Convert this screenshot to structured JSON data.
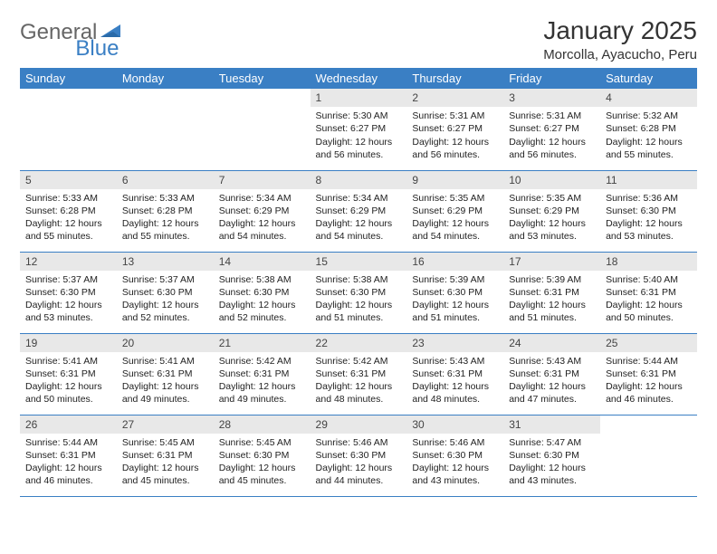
{
  "logo": {
    "textA": "General",
    "textB": "Blue"
  },
  "title": "January 2025",
  "location": "Morcolla, Ayacucho, Peru",
  "colors": {
    "header_bg": "#3a7fc4",
    "header_fg": "#ffffff",
    "daynum_bg": "#e8e8e8",
    "border": "#3a7fc4",
    "page_bg": "#ffffff",
    "text": "#222222",
    "logo_blue": "#3a7fc4",
    "logo_gray": "#666666"
  },
  "weekdays": [
    "Sunday",
    "Monday",
    "Tuesday",
    "Wednesday",
    "Thursday",
    "Friday",
    "Saturday"
  ],
  "weeks": [
    [
      null,
      null,
      null,
      {
        "n": "1",
        "sunrise": "5:30 AM",
        "sunset": "6:27 PM",
        "daylight": "12 hours and 56 minutes."
      },
      {
        "n": "2",
        "sunrise": "5:31 AM",
        "sunset": "6:27 PM",
        "daylight": "12 hours and 56 minutes."
      },
      {
        "n": "3",
        "sunrise": "5:31 AM",
        "sunset": "6:27 PM",
        "daylight": "12 hours and 56 minutes."
      },
      {
        "n": "4",
        "sunrise": "5:32 AM",
        "sunset": "6:28 PM",
        "daylight": "12 hours and 55 minutes."
      }
    ],
    [
      {
        "n": "5",
        "sunrise": "5:33 AM",
        "sunset": "6:28 PM",
        "daylight": "12 hours and 55 minutes."
      },
      {
        "n": "6",
        "sunrise": "5:33 AM",
        "sunset": "6:28 PM",
        "daylight": "12 hours and 55 minutes."
      },
      {
        "n": "7",
        "sunrise": "5:34 AM",
        "sunset": "6:29 PM",
        "daylight": "12 hours and 54 minutes."
      },
      {
        "n": "8",
        "sunrise": "5:34 AM",
        "sunset": "6:29 PM",
        "daylight": "12 hours and 54 minutes."
      },
      {
        "n": "9",
        "sunrise": "5:35 AM",
        "sunset": "6:29 PM",
        "daylight": "12 hours and 54 minutes."
      },
      {
        "n": "10",
        "sunrise": "5:35 AM",
        "sunset": "6:29 PM",
        "daylight": "12 hours and 53 minutes."
      },
      {
        "n": "11",
        "sunrise": "5:36 AM",
        "sunset": "6:30 PM",
        "daylight": "12 hours and 53 minutes."
      }
    ],
    [
      {
        "n": "12",
        "sunrise": "5:37 AM",
        "sunset": "6:30 PM",
        "daylight": "12 hours and 53 minutes."
      },
      {
        "n": "13",
        "sunrise": "5:37 AM",
        "sunset": "6:30 PM",
        "daylight": "12 hours and 52 minutes."
      },
      {
        "n": "14",
        "sunrise": "5:38 AM",
        "sunset": "6:30 PM",
        "daylight": "12 hours and 52 minutes."
      },
      {
        "n": "15",
        "sunrise": "5:38 AM",
        "sunset": "6:30 PM",
        "daylight": "12 hours and 51 minutes."
      },
      {
        "n": "16",
        "sunrise": "5:39 AM",
        "sunset": "6:30 PM",
        "daylight": "12 hours and 51 minutes."
      },
      {
        "n": "17",
        "sunrise": "5:39 AM",
        "sunset": "6:31 PM",
        "daylight": "12 hours and 51 minutes."
      },
      {
        "n": "18",
        "sunrise": "5:40 AM",
        "sunset": "6:31 PM",
        "daylight": "12 hours and 50 minutes."
      }
    ],
    [
      {
        "n": "19",
        "sunrise": "5:41 AM",
        "sunset": "6:31 PM",
        "daylight": "12 hours and 50 minutes."
      },
      {
        "n": "20",
        "sunrise": "5:41 AM",
        "sunset": "6:31 PM",
        "daylight": "12 hours and 49 minutes."
      },
      {
        "n": "21",
        "sunrise": "5:42 AM",
        "sunset": "6:31 PM",
        "daylight": "12 hours and 49 minutes."
      },
      {
        "n": "22",
        "sunrise": "5:42 AM",
        "sunset": "6:31 PM",
        "daylight": "12 hours and 48 minutes."
      },
      {
        "n": "23",
        "sunrise": "5:43 AM",
        "sunset": "6:31 PM",
        "daylight": "12 hours and 48 minutes."
      },
      {
        "n": "24",
        "sunrise": "5:43 AM",
        "sunset": "6:31 PM",
        "daylight": "12 hours and 47 minutes."
      },
      {
        "n": "25",
        "sunrise": "5:44 AM",
        "sunset": "6:31 PM",
        "daylight": "12 hours and 46 minutes."
      }
    ],
    [
      {
        "n": "26",
        "sunrise": "5:44 AM",
        "sunset": "6:31 PM",
        "daylight": "12 hours and 46 minutes."
      },
      {
        "n": "27",
        "sunrise": "5:45 AM",
        "sunset": "6:31 PM",
        "daylight": "12 hours and 45 minutes."
      },
      {
        "n": "28",
        "sunrise": "5:45 AM",
        "sunset": "6:30 PM",
        "daylight": "12 hours and 45 minutes."
      },
      {
        "n": "29",
        "sunrise": "5:46 AM",
        "sunset": "6:30 PM",
        "daylight": "12 hours and 44 minutes."
      },
      {
        "n": "30",
        "sunrise": "5:46 AM",
        "sunset": "6:30 PM",
        "daylight": "12 hours and 43 minutes."
      },
      {
        "n": "31",
        "sunrise": "5:47 AM",
        "sunset": "6:30 PM",
        "daylight": "12 hours and 43 minutes."
      },
      null
    ]
  ],
  "labels": {
    "sunrise": "Sunrise:",
    "sunset": "Sunset:",
    "daylight": "Daylight:"
  }
}
